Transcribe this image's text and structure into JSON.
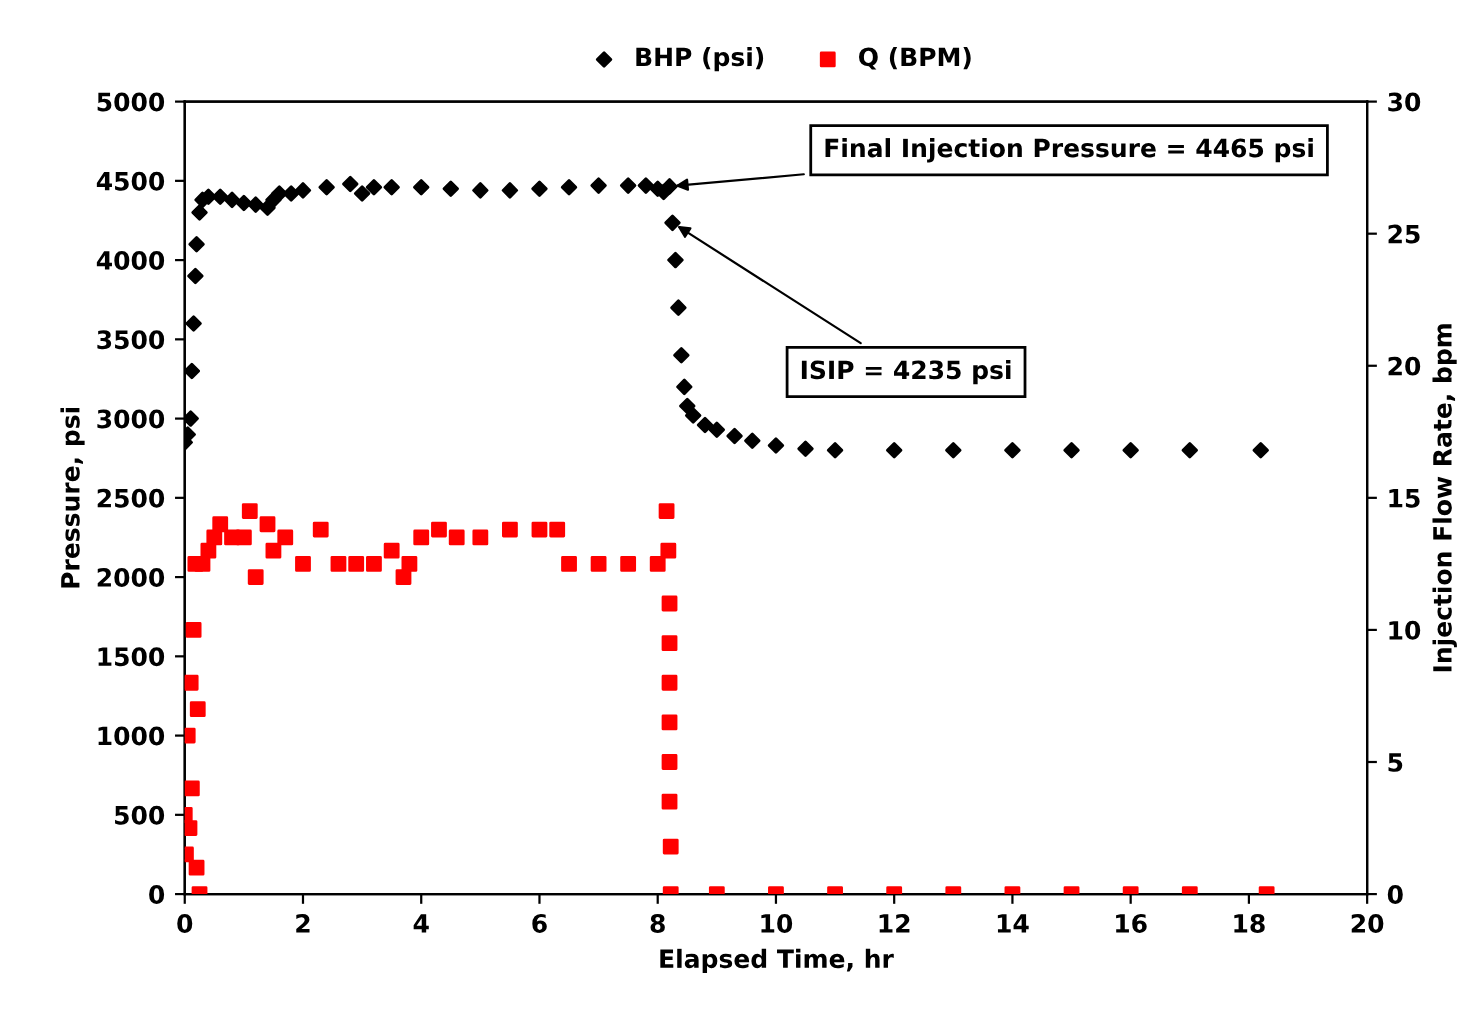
{
  "chart_data": {
    "type": "scatter",
    "xlabel": "Elapsed Time, hr",
    "ylabel": "Pressure, psi",
    "y2label": "Injection Flow Rate, bpm",
    "xlim": [
      0,
      20
    ],
    "xticks": [
      0,
      2,
      4,
      6,
      8,
      10,
      12,
      14,
      16,
      18,
      20
    ],
    "ylim": [
      0,
      5000
    ],
    "yticks": [
      0,
      500,
      1000,
      1500,
      2000,
      2500,
      3000,
      3500,
      4000,
      4500,
      5000
    ],
    "y2lim": [
      0,
      30
    ],
    "y2ticks": [
      0,
      5,
      10,
      15,
      20,
      25,
      30
    ],
    "grid": false,
    "legend": "top",
    "series": [
      {
        "name": "BHP (psi)",
        "color": "#000000",
        "marker": "diamond",
        "x": [
          0,
          0.05,
          0.1,
          0.12,
          0.15,
          0.18,
          0.2,
          0.25,
          0.3,
          0.4,
          0.6,
          0.8,
          1.0,
          1.2,
          1.4,
          1.5,
          1.6,
          1.8,
          2.0,
          2.4,
          2.8,
          3.0,
          3.2,
          3.5,
          4.0,
          4.5,
          5.0,
          5.5,
          6.0,
          6.5,
          7.0,
          7.5,
          7.8,
          8.0,
          8.1,
          8.2,
          8.25,
          8.3,
          8.35,
          8.4,
          8.45,
          8.5,
          8.6,
          8.8,
          9.0,
          9.3,
          9.6,
          10.0,
          10.5,
          11.0,
          12.0,
          13.0,
          14.0,
          15.0,
          16.0,
          17.0,
          18.2
        ],
        "values": [
          2850,
          2900,
          3000,
          3300,
          3600,
          3900,
          4100,
          4300,
          4380,
          4400,
          4400,
          4380,
          4360,
          4350,
          4330,
          4380,
          4420,
          4420,
          4440,
          4460,
          4480,
          4420,
          4460,
          4460,
          4460,
          4450,
          4440,
          4440,
          4450,
          4460,
          4470,
          4470,
          4470,
          4450,
          4430,
          4465,
          4235,
          4000,
          3700,
          3400,
          3200,
          3080,
          3020,
          2960,
          2930,
          2890,
          2860,
          2830,
          2810,
          2800,
          2800,
          2800,
          2800,
          2800,
          2800,
          2800,
          2800
        ]
      },
      {
        "name": "Q (BPM)",
        "color": "#ff0000",
        "marker": "square",
        "axis": "y2",
        "x": [
          0,
          0.02,
          0.05,
          0.08,
          0.1,
          0.12,
          0.15,
          0.18,
          0.2,
          0.22,
          0.25,
          0.3,
          0.4,
          0.5,
          0.6,
          0.8,
          1.0,
          1.1,
          1.2,
          1.4,
          1.5,
          1.7,
          2.0,
          2.3,
          2.6,
          2.9,
          3.2,
          3.5,
          3.7,
          3.8,
          4.0,
          4.3,
          4.6,
          5.0,
          5.5,
          6.0,
          6.3,
          6.5,
          7.0,
          7.5,
          8.0,
          8.15,
          8.18,
          8.2,
          8.2,
          8.2,
          8.2,
          8.2,
          8.2,
          8.22,
          8.22,
          9,
          10,
          11,
          12,
          13,
          14,
          15,
          16,
          17,
          18.3
        ],
        "values": [
          3,
          1.5,
          6,
          2.5,
          8,
          4,
          10,
          12.5,
          1,
          7,
          0,
          12.5,
          13,
          13.5,
          14,
          13.5,
          13.5,
          14.5,
          12,
          14,
          13,
          13.5,
          12.5,
          13.8,
          12.5,
          12.5,
          12.5,
          13,
          12,
          12.5,
          13.5,
          13.8,
          13.5,
          13.5,
          13.8,
          13.8,
          13.8,
          12.5,
          12.5,
          12.5,
          12.5,
          14.5,
          13,
          11,
          9.5,
          8,
          6.5,
          5,
          3.5,
          1.8,
          0,
          0,
          0,
          0,
          0,
          0,
          0,
          0,
          0,
          0,
          0
        ]
      }
    ],
    "annotations": [
      {
        "text": "Final Injection Pressure = 4465 psi",
        "x": 8.2,
        "y": 4465
      },
      {
        "text": "ISIP = 4235 psi",
        "x": 8.25,
        "y": 4235
      }
    ]
  }
}
